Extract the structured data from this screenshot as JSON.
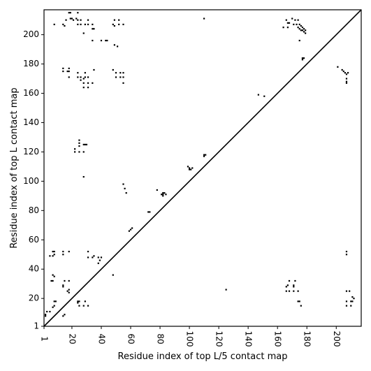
{
  "chart_data": {
    "type": "scatter",
    "xlabel": "Residue index of top L/5 contact map",
    "ylabel": "Residue index of top L contact map",
    "xlim": [
      1,
      217
    ],
    "ylim": [
      1,
      217
    ],
    "xticks": [
      1,
      20,
      40,
      60,
      80,
      100,
      120,
      140,
      160,
      180,
      200
    ],
    "yticks": [
      1,
      20,
      40,
      60,
      80,
      100,
      120,
      140,
      160,
      180,
      200
    ],
    "grid": false,
    "diagonal": true,
    "marker_color": "#000000",
    "series": [
      {
        "points": [
          [
            2,
            8
          ],
          [
            2,
            9
          ],
          [
            3,
            11
          ],
          [
            5,
            11
          ],
          [
            7,
            14
          ],
          [
            8,
            15
          ],
          [
            8,
            18
          ],
          [
            9,
            18
          ],
          [
            6,
            32
          ],
          [
            7,
            32
          ],
          [
            8,
            35
          ],
          [
            7,
            36
          ],
          [
            5,
            49
          ],
          [
            7,
            49
          ],
          [
            8,
            50
          ],
          [
            8,
            52
          ],
          [
            7,
            52
          ],
          [
            14,
            50
          ],
          [
            14,
            52
          ],
          [
            18,
            52
          ],
          [
            14,
            8
          ],
          [
            15,
            9
          ],
          [
            14,
            28
          ],
          [
            14,
            29
          ],
          [
            15,
            32
          ],
          [
            18,
            32
          ],
          [
            17,
            25
          ],
          [
            18,
            26
          ],
          [
            18,
            24
          ],
          [
            24,
            17
          ],
          [
            24,
            18
          ],
          [
            25,
            18
          ],
          [
            25,
            15
          ],
          [
            28,
            15
          ],
          [
            29,
            18
          ],
          [
            31,
            15
          ],
          [
            31,
            48
          ],
          [
            31,
            52
          ],
          [
            34,
            48
          ],
          [
            35,
            49
          ],
          [
            38,
            44
          ],
          [
            39,
            46
          ],
          [
            38,
            48
          ],
          [
            40,
            48
          ],
          [
            48,
            36
          ],
          [
            22,
            120
          ],
          [
            22,
            122
          ],
          [
            25,
            120
          ],
          [
            28,
            120
          ],
          [
            25,
            124
          ],
          [
            25,
            126
          ],
          [
            25,
            128
          ],
          [
            28,
            125
          ],
          [
            29,
            125
          ],
          [
            30,
            125
          ],
          [
            28,
            103
          ],
          [
            14,
            175
          ],
          [
            14,
            177
          ],
          [
            17,
            175
          ],
          [
            18,
            175
          ],
          [
            18,
            177
          ],
          [
            18,
            171
          ],
          [
            24,
            171
          ],
          [
            24,
            174
          ],
          [
            26,
            171
          ],
          [
            26,
            169
          ],
          [
            28,
            170
          ],
          [
            28,
            167
          ],
          [
            28,
            164
          ],
          [
            29,
            171
          ],
          [
            29,
            174
          ],
          [
            31,
            171
          ],
          [
            31,
            167
          ],
          [
            31,
            164
          ],
          [
            34,
            167
          ],
          [
            35,
            176
          ],
          [
            50,
            174
          ],
          [
            50,
            171
          ],
          [
            53,
            174
          ],
          [
            53,
            171
          ],
          [
            55,
            167
          ],
          [
            55,
            171
          ],
          [
            55,
            174
          ],
          [
            48,
            176
          ],
          [
            8,
            207
          ],
          [
            14,
            207
          ],
          [
            15,
            206
          ],
          [
            16,
            210
          ],
          [
            18,
            215
          ],
          [
            19,
            215
          ],
          [
            19,
            211
          ],
          [
            20,
            211
          ],
          [
            21,
            210
          ],
          [
            23,
            211
          ],
          [
            24,
            215
          ],
          [
            24,
            207
          ],
          [
            24,
            210
          ],
          [
            26,
            207
          ],
          [
            26,
            210
          ],
          [
            28,
            201
          ],
          [
            29,
            207
          ],
          [
            31,
            210
          ],
          [
            31,
            207
          ],
          [
            34,
            207
          ],
          [
            34,
            204
          ],
          [
            34,
            196
          ],
          [
            35,
            204
          ],
          [
            40,
            196
          ],
          [
            43,
            196
          ],
          [
            44,
            196
          ],
          [
            48,
            207
          ],
          [
            49,
            206
          ],
          [
            49,
            193
          ],
          [
            49,
            210
          ],
          [
            51,
            192
          ],
          [
            52,
            207
          ],
          [
            52,
            210
          ],
          [
            55,
            207
          ],
          [
            55,
            98
          ],
          [
            56,
            95
          ],
          [
            57,
            92
          ],
          [
            59,
            66
          ],
          [
            60,
            67
          ],
          [
            61,
            68
          ],
          [
            72,
            79
          ],
          [
            73,
            79
          ],
          [
            78,
            94
          ],
          [
            81,
            91
          ],
          [
            82,
            91
          ],
          [
            83,
            92
          ],
          [
            84,
            91
          ],
          [
            82,
            92
          ],
          [
            82,
            90
          ],
          [
            99,
            110
          ],
          [
            100,
            109
          ],
          [
            101,
            108
          ],
          [
            102,
            109
          ],
          [
            100,
            108
          ],
          [
            110,
            118
          ],
          [
            111,
            118
          ],
          [
            110,
            117
          ],
          [
            110,
            211
          ],
          [
            125,
            26
          ],
          [
            147,
            159
          ],
          [
            151,
            158
          ],
          [
            164,
            205
          ],
          [
            166,
            210
          ],
          [
            167,
            205
          ],
          [
            167,
            208
          ],
          [
            168,
            208
          ],
          [
            170,
            211
          ],
          [
            171,
            207
          ],
          [
            172,
            210
          ],
          [
            173,
            207
          ],
          [
            174,
            210
          ],
          [
            174,
            205
          ],
          [
            175,
            207
          ],
          [
            175,
            204
          ],
          [
            176,
            206
          ],
          [
            176,
            203
          ],
          [
            177,
            205
          ],
          [
            177,
            203
          ],
          [
            178,
            204
          ],
          [
            178,
            202
          ],
          [
            179,
            203
          ],
          [
            179,
            201
          ],
          [
            175,
            196
          ],
          [
            177,
            184
          ],
          [
            177,
            183
          ],
          [
            178,
            184
          ],
          [
            166,
            25
          ],
          [
            166,
            28
          ],
          [
            167,
            29
          ],
          [
            168,
            25
          ],
          [
            168,
            32
          ],
          [
            171,
            25
          ],
          [
            171,
            28
          ],
          [
            171,
            29
          ],
          [
            172,
            32
          ],
          [
            174,
            25
          ],
          [
            174,
            18
          ],
          [
            175,
            18
          ],
          [
            176,
            15
          ],
          [
            201,
            178
          ],
          [
            204,
            176
          ],
          [
            205,
            175
          ],
          [
            206,
            174
          ],
          [
            207,
            173
          ],
          [
            207,
            170
          ],
          [
            208,
            174
          ],
          [
            207,
            168
          ],
          [
            207,
            167
          ],
          [
            207,
            50
          ],
          [
            207,
            52
          ],
          [
            207,
            25
          ],
          [
            207,
            18
          ],
          [
            207,
            15
          ],
          [
            209,
            25
          ],
          [
            210,
            18
          ],
          [
            210,
            15
          ],
          [
            211,
            21
          ],
          [
            211,
            18
          ],
          [
            212,
            20
          ]
        ]
      }
    ]
  }
}
